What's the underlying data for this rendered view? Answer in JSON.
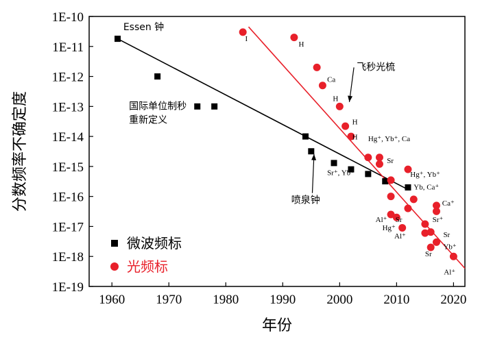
{
  "chart_data": {
    "type": "scatter",
    "title": "",
    "xlabel": "年份",
    "ylabel": "分数频率不确定度",
    "xlim": [
      1956,
      2022
    ],
    "ylim_log10": [
      -19,
      -10
    ],
    "y_scale": "log",
    "x_ticks": [
      1960,
      1970,
      1980,
      1990,
      2000,
      2010,
      2020
    ],
    "x_tick_labels": [
      "1960",
      "1970",
      "1980",
      "1990",
      "2000",
      "2010",
      "2020"
    ],
    "y_ticks_log10": [
      -10,
      -11,
      -12,
      -13,
      -14,
      -15,
      -16,
      -17,
      -18,
      -19
    ],
    "y_tick_labels": [
      "1E-10",
      "1E-11",
      "1E-12",
      "1E-13",
      "1E-14",
      "1E-15",
      "1E-16",
      "1E-17",
      "1E-18",
      "1E-19"
    ],
    "legend_position": "bottom-left",
    "series": [
      {
        "name": "微波频标",
        "color": "#000000",
        "marker": "square",
        "x": [
          1961,
          1968,
          1975,
          1978,
          1994,
          1995,
          1999,
          2002,
          2005,
          2008,
          2012
        ],
        "y": [
          1.8e-11,
          1e-12,
          1e-13,
          1e-13,
          1e-14,
          3.2e-15,
          1.3e-15,
          8e-16,
          5.6e-16,
          3.2e-16,
          2e-16
        ]
      },
      {
        "name": "光频标",
        "color": "#e8202a",
        "marker": "circle",
        "x": [
          1983,
          1992,
          1996,
          1997,
          2000,
          2001,
          2002,
          2005,
          2007,
          2007,
          2009,
          2009,
          2009,
          2010,
          2011,
          2012,
          2012,
          2013,
          2015,
          2015,
          2016,
          2016,
          2017,
          2017,
          2017,
          2020
        ],
        "y": [
          3e-11,
          2e-11,
          2e-12,
          5e-13,
          1e-13,
          2.2e-14,
          1e-14,
          2e-15,
          2e-15,
          1.2e-15,
          3.5e-16,
          1e-16,
          2.5e-17,
          2e-17,
          9e-18,
          8e-16,
          4e-17,
          8e-17,
          1.2e-17,
          6e-18,
          2e-18,
          6.5e-18,
          5e-17,
          3e-18,
          3.2e-17,
          1e-18
        ]
      }
    ],
    "trend_lines": [
      {
        "color": "#000000",
        "points": [
          [
            1961,
            1.8e-11
          ],
          [
            2012,
            1.7e-16
          ]
        ]
      },
      {
        "color": "#e8202a",
        "points": [
          [
            1984,
            4.5e-11
          ],
          [
            2022,
            4e-19
          ]
        ]
      }
    ],
    "annotations": [
      {
        "text": "Essen 钟",
        "x": 1962,
        "y": 3.5e-11,
        "style": "cn"
      },
      {
        "text": "I",
        "x": 1983.4,
        "y": 1.5e-11,
        "style": "label"
      },
      {
        "text": "H",
        "x": 1992.8,
        "y": 1e-11,
        "style": "label"
      },
      {
        "text": "Ca",
        "x": 1997.8,
        "y": 6.5e-13,
        "style": "label"
      },
      {
        "text": "H",
        "x": 1998.8,
        "y": 1.5e-13,
        "style": "label"
      },
      {
        "text": "H",
        "x": 2002.2,
        "y": 2.5e-14,
        "style": "label"
      },
      {
        "text": "H",
        "x": 2002.2,
        "y": 8e-15,
        "style": "label"
      },
      {
        "text": "飞秒光梳",
        "x": 2003,
        "y": 1.6e-12,
        "style": "cn"
      },
      {
        "text": "国际单位制秒",
        "x": 1963,
        "y": 8e-14,
        "style": "cn"
      },
      {
        "text": "重新定义",
        "x": 1963,
        "y": 2.8e-14,
        "style": "cn"
      },
      {
        "text": "Hg⁺, Yb⁺, Ca",
        "x": 2005,
        "y": 7e-15,
        "style": "label"
      },
      {
        "text": "Sr",
        "x": 2008.3,
        "y": 1.3e-15,
        "style": "label"
      },
      {
        "text": "Sr⁺, Yb⁺",
        "x": 1997.8,
        "y": 5.2e-16,
        "style": "label"
      },
      {
        "text": "Hg⁺, Yb⁺",
        "x": 2012.4,
        "y": 4.5e-16,
        "style": "label"
      },
      {
        "text": "Yb, Ca⁺",
        "x": 2013,
        "y": 1.7e-16,
        "style": "label"
      },
      {
        "text": "喷泉钟",
        "x": 1991.5,
        "y": 6e-17,
        "style": "cn"
      },
      {
        "text": "Ca⁺",
        "x": 2018,
        "y": 5e-17,
        "style": "label"
      },
      {
        "text": "Al⁺",
        "x": 2006.3,
        "y": 1.4e-17,
        "style": "label"
      },
      {
        "text": "Sr",
        "x": 2009.8,
        "y": 1.4e-17,
        "style": "label"
      },
      {
        "text": "Sr⁺",
        "x": 2016.3,
        "y": 1.4e-17,
        "style": "label"
      },
      {
        "text": "Hg⁺",
        "x": 2007.5,
        "y": 7.5e-18,
        "style": "label"
      },
      {
        "text": "Sr",
        "x": 2018.2,
        "y": 4.4e-18,
        "style": "label"
      },
      {
        "text": "Al⁺",
        "x": 2009.6,
        "y": 4e-18,
        "style": "label"
      },
      {
        "text": "Yb⁺",
        "x": 2018.2,
        "y": 1.75e-18,
        "style": "label"
      },
      {
        "text": "Sr",
        "x": 2015,
        "y": 1e-18,
        "style": "label"
      },
      {
        "text": "Al⁺",
        "x": 2018.3,
        "y": 2.5e-19,
        "style": "label"
      }
    ],
    "arrows": [
      {
        "from": [
          2002.5,
          2e-12
        ],
        "to": [
          2001.7,
          1.4e-13
        ]
      },
      {
        "from": [
          1995.2,
          1.3e-16
        ],
        "to": [
          1995.5,
          2.6e-15
        ]
      }
    ]
  }
}
